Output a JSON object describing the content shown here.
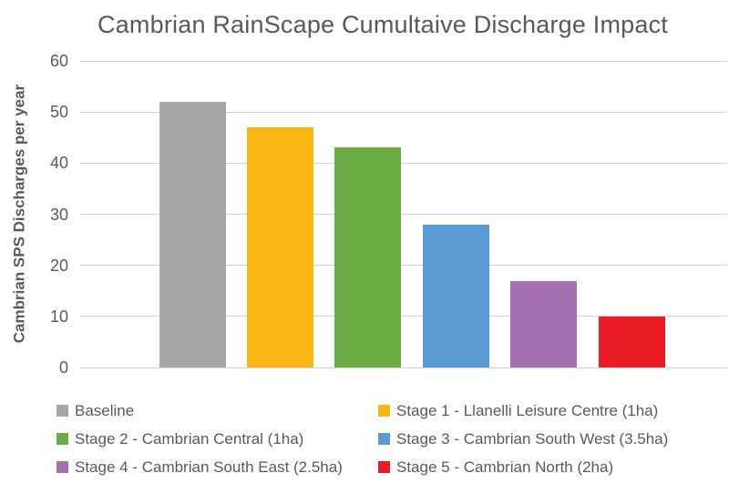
{
  "chart_data": {
    "type": "bar",
    "title": "Cambrian RainScape Cumultaive Discharge Impact",
    "xlabel": "",
    "ylabel": "Cambrian SPS Discharges per year",
    "ylim": [
      0,
      60
    ],
    "yticks": [
      0,
      10,
      20,
      30,
      40,
      50,
      60
    ],
    "grid": true,
    "legend_position": "bottom",
    "categories": [
      "Baseline",
      "Stage 1 - Llanelli Leisure Centre (1ha)",
      "Stage 2 - Cambrian Central (1ha)",
      "Stage 3 - Cambrian South West (3.5ha)",
      "Stage 4 - Cambrian South East (2.5ha)",
      "Stage 5 - Cambrian North (2ha)"
    ],
    "values": [
      52,
      47,
      43,
      28,
      17,
      10
    ],
    "colors": [
      "#A6A6A6",
      "#FBB615",
      "#6CAC44",
      "#5B9BD5",
      "#A571B3",
      "#EC1C24"
    ]
  },
  "styles": {
    "text_color": "#595959",
    "gridline_color": "#D6D6D6",
    "background": "#FFFFFF"
  }
}
